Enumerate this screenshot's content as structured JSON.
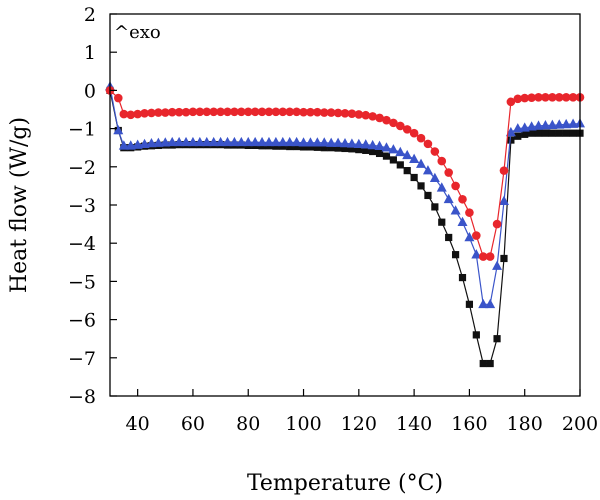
{
  "chart_data": {
    "type": "line",
    "title": "",
    "xlabel": "Temperature (°C)",
    "ylabel": "Heat flow (W/g)",
    "annotation": "^exo",
    "xlim": [
      30,
      200
    ],
    "ylim": [
      -8,
      2
    ],
    "xticks": [
      40,
      60,
      80,
      100,
      120,
      140,
      160,
      180,
      200
    ],
    "yticks": [
      2,
      1,
      0,
      -1,
      -2,
      -3,
      -4,
      -5,
      -6,
      -7,
      -8
    ],
    "grid": false,
    "legend": "none",
    "series": [
      {
        "marker": "square",
        "color": "#111111",
        "x": [
          30,
          33,
          35,
          37.5,
          40,
          42.5,
          45,
          47.5,
          50,
          52.5,
          55,
          57.5,
          60,
          62.5,
          65,
          67.5,
          70,
          72.5,
          75,
          77.5,
          80,
          82.5,
          85,
          87.5,
          90,
          92.5,
          95,
          97.5,
          100,
          102.5,
          105,
          107.5,
          110,
          112.5,
          115,
          117.5,
          120,
          122.5,
          125,
          127.5,
          130,
          132.5,
          135,
          137.5,
          140,
          142.5,
          145,
          147.5,
          150,
          152.5,
          155,
          157.5,
          160,
          162.5,
          165,
          167.5,
          170,
          172.5,
          175,
          177.5,
          180,
          182.5,
          185,
          187.5,
          190,
          192.5,
          195,
          197.5,
          200
        ],
        "y": [
          0,
          -1.05,
          -1.5,
          -1.5,
          -1.48,
          -1.46,
          -1.45,
          -1.44,
          -1.43,
          -1.43,
          -1.42,
          -1.42,
          -1.42,
          -1.42,
          -1.42,
          -1.42,
          -1.42,
          -1.43,
          -1.43,
          -1.43,
          -1.44,
          -1.44,
          -1.45,
          -1.45,
          -1.46,
          -1.46,
          -1.47,
          -1.47,
          -1.48,
          -1.48,
          -1.49,
          -1.5,
          -1.5,
          -1.51,
          -1.52,
          -1.53,
          -1.55,
          -1.57,
          -1.6,
          -1.65,
          -1.72,
          -1.82,
          -1.95,
          -2.1,
          -2.28,
          -2.5,
          -2.75,
          -3.05,
          -3.45,
          -3.85,
          -4.3,
          -4.9,
          -5.6,
          -6.4,
          -7.15,
          -7.15,
          -6.5,
          -4.4,
          -1.3,
          -1.2,
          -1.15,
          -1.12,
          -1.12,
          -1.12,
          -1.12,
          -1.12,
          -1.12,
          -1.12,
          -1.12
        ]
      },
      {
        "marker": "triangle",
        "color": "#3a54c9",
        "x": [
          30,
          33,
          35,
          37.5,
          40,
          42.5,
          45,
          47.5,
          50,
          52.5,
          55,
          57.5,
          60,
          62.5,
          65,
          67.5,
          70,
          72.5,
          75,
          77.5,
          80,
          82.5,
          85,
          87.5,
          90,
          92.5,
          95,
          97.5,
          100,
          102.5,
          105,
          107.5,
          110,
          112.5,
          115,
          117.5,
          120,
          122.5,
          125,
          127.5,
          130,
          132.5,
          135,
          137.5,
          140,
          142.5,
          145,
          147.5,
          150,
          152.5,
          155,
          157.5,
          160,
          162.5,
          165,
          167.5,
          170,
          172.5,
          175,
          177.5,
          180,
          182.5,
          185,
          187.5,
          190,
          192.5,
          195,
          197.5,
          200
        ],
        "y": [
          0.1,
          -1.05,
          -1.45,
          -1.45,
          -1.43,
          -1.41,
          -1.39,
          -1.38,
          -1.37,
          -1.36,
          -1.36,
          -1.36,
          -1.36,
          -1.36,
          -1.36,
          -1.36,
          -1.36,
          -1.36,
          -1.36,
          -1.36,
          -1.36,
          -1.36,
          -1.36,
          -1.36,
          -1.36,
          -1.36,
          -1.36,
          -1.36,
          -1.37,
          -1.37,
          -1.37,
          -1.37,
          -1.38,
          -1.38,
          -1.39,
          -1.4,
          -1.41,
          -1.42,
          -1.44,
          -1.46,
          -1.5,
          -1.55,
          -1.62,
          -1.7,
          -1.8,
          -1.93,
          -2.1,
          -2.3,
          -2.55,
          -2.85,
          -3.15,
          -3.45,
          -3.85,
          -4.3,
          -5.6,
          -5.6,
          -4.6,
          -2.9,
          -1.1,
          -1.0,
          -0.98,
          -0.95,
          -0.93,
          -0.92,
          -0.91,
          -0.9,
          -0.89,
          -0.88,
          -0.87
        ]
      },
      {
        "marker": "circle",
        "color": "#e8262c",
        "x": [
          30,
          33,
          35,
          37.5,
          40,
          42.5,
          45,
          47.5,
          50,
          52.5,
          55,
          57.5,
          60,
          62.5,
          65,
          67.5,
          70,
          72.5,
          75,
          77.5,
          80,
          82.5,
          85,
          87.5,
          90,
          92.5,
          95,
          97.5,
          100,
          102.5,
          105,
          107.5,
          110,
          112.5,
          115,
          117.5,
          120,
          122.5,
          125,
          127.5,
          130,
          132.5,
          135,
          137.5,
          140,
          142.5,
          145,
          147.5,
          150,
          152.5,
          155,
          157.5,
          160,
          162.5,
          165,
          167.5,
          170,
          172.5,
          175,
          177.5,
          180,
          182.5,
          185,
          187.5,
          190,
          192.5,
          195,
          197.5,
          200
        ],
        "y": [
          0,
          -0.2,
          -0.62,
          -0.64,
          -0.62,
          -0.6,
          -0.59,
          -0.58,
          -0.58,
          -0.57,
          -0.57,
          -0.57,
          -0.56,
          -0.56,
          -0.56,
          -0.56,
          -0.56,
          -0.56,
          -0.56,
          -0.56,
          -0.56,
          -0.56,
          -0.56,
          -0.56,
          -0.56,
          -0.56,
          -0.56,
          -0.56,
          -0.57,
          -0.57,
          -0.57,
          -0.58,
          -0.58,
          -0.59,
          -0.6,
          -0.61,
          -0.63,
          -0.65,
          -0.68,
          -0.72,
          -0.78,
          -0.85,
          -0.93,
          -1.02,
          -1.12,
          -1.25,
          -1.4,
          -1.6,
          -1.85,
          -2.15,
          -2.5,
          -2.85,
          -3.2,
          -3.8,
          -4.35,
          -4.35,
          -3.5,
          -2.1,
          -0.3,
          -0.22,
          -0.2,
          -0.19,
          -0.18,
          -0.18,
          -0.18,
          -0.18,
          -0.18,
          -0.18,
          -0.18
        ]
      }
    ]
  }
}
